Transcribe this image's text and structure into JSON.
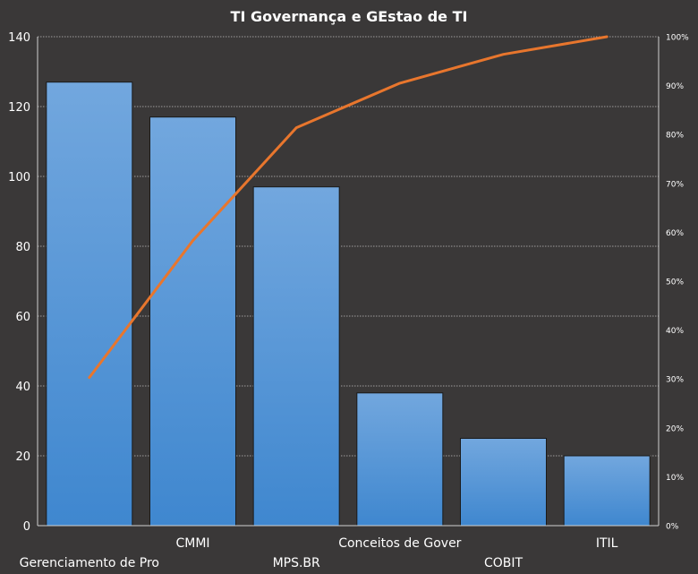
{
  "chart_data": {
    "type": "bar",
    "title": "TI Governança e GEstao de TI",
    "categories": [
      "Gerenciamento de Pro",
      "CMMI",
      "MPS.BR",
      "Conceitos de Gover",
      "COBIT",
      "ITIL"
    ],
    "series": [
      {
        "type": "bar",
        "values": [
          127,
          117,
          97,
          38,
          25,
          20
        ]
      },
      {
        "type": "line",
        "axis": "right",
        "values": [
          30.3,
          58.3,
          81.4,
          90.5,
          96.4,
          100
        ]
      }
    ],
    "ylim": [
      0,
      140
    ],
    "yticks": [
      0,
      20,
      40,
      60,
      80,
      100,
      120,
      140
    ],
    "y2lim": [
      0,
      100
    ],
    "y2ticks": [
      "0%",
      "10%",
      "20%",
      "30%",
      "40%",
      "50%",
      "60%",
      "70%",
      "80%",
      "90%",
      "100%"
    ],
    "grid": true,
    "legend": "none",
    "colors": {
      "background": "#3a3838",
      "bar": "#4a90d4",
      "line": "#e8762d",
      "grid": "#bfbfbf",
      "text": "#ffffff"
    }
  }
}
